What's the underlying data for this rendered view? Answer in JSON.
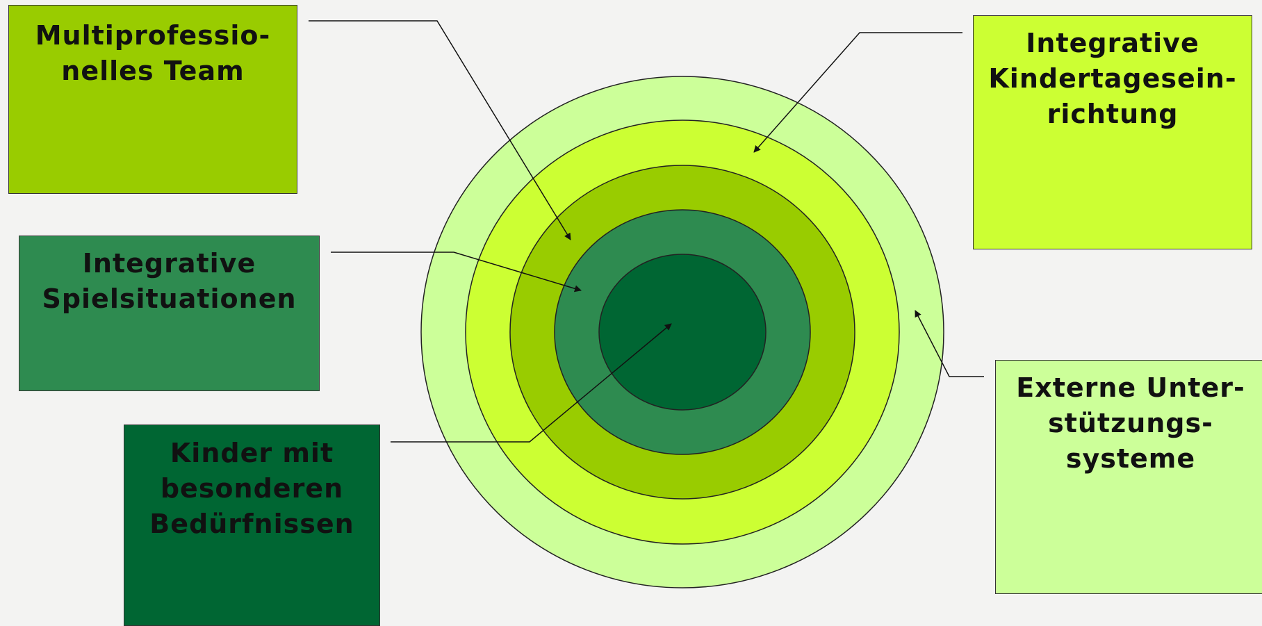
{
  "colors": {
    "background": "#f3f3f2",
    "ring_outer": "#ccff99",
    "ring_2": "#ccff33",
    "ring_3": "#99cc00",
    "ring_4": "#2e8b50",
    "ring_core": "#006633",
    "stroke": "#222222"
  },
  "labels": {
    "multiprofessionelles_team": [
      "Multiprofessio-",
      "nelles Team"
    ],
    "integrative_spielsituationen": [
      "Integrative",
      "Spielsituationen"
    ],
    "kinder_mit_besonderen_beduerfnissen": [
      "Kinder mit",
      "besonderen",
      "Bedürfnissen"
    ],
    "integrative_kindertageseinrichtung": [
      "Integrative",
      "Kindertagesein-",
      "richtung"
    ],
    "externe_unterstuetzungssysteme": [
      "Externe Unter-",
      "stützungs-",
      "systeme"
    ]
  }
}
